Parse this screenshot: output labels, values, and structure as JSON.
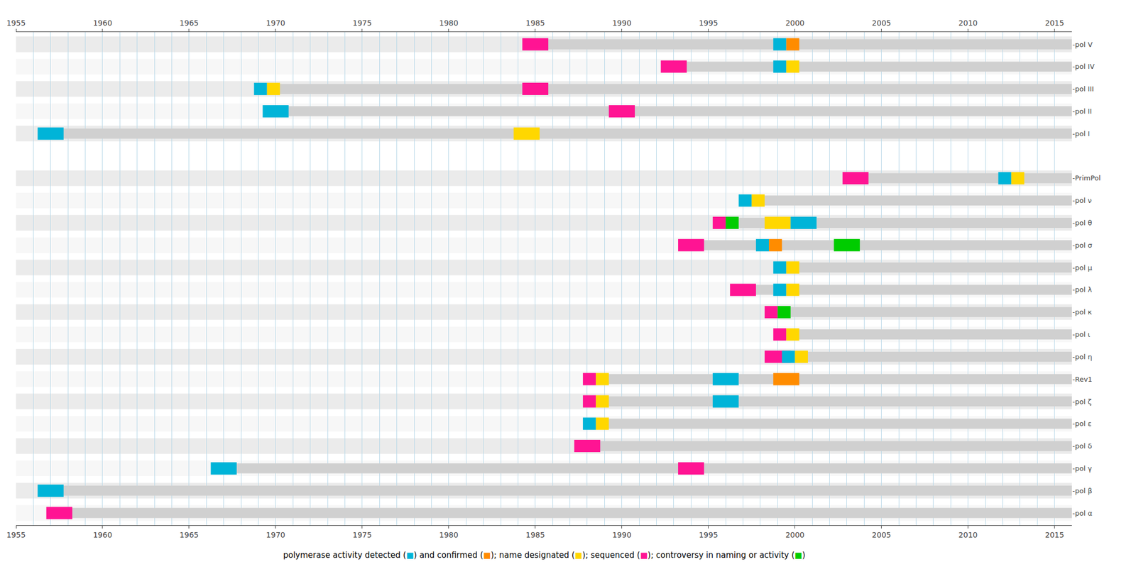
{
  "chart_data": {
    "type": "timeline",
    "categories": [
      "-pol V",
      "-pol IV",
      "-pol III",
      "-pol II",
      "-pol I",
      null,
      "-PrimPol",
      "-pol ν",
      "-pol θ",
      "-pol σ",
      "-pol μ",
      "-pol λ",
      "-pol κ",
      "-pol ι",
      "-pol η",
      "-Rev1",
      "-pol ζ",
      "-pol ε",
      "-pol δ",
      "-pol γ",
      "-pol β",
      "-pol α"
    ],
    "xlim": [
      1955,
      2016
    ],
    "xticks": [
      1955,
      1960,
      1965,
      1970,
      1975,
      1980,
      1985,
      1990,
      1995,
      2000,
      2005,
      2010,
      2015
    ],
    "grid": true,
    "spans": [
      {
        "category": "-pol V",
        "x": [
          1985,
          2016
        ]
      },
      {
        "category": "-pol IV",
        "x": [
          1993,
          2016
        ]
      },
      {
        "category": "-pol III",
        "x": [
          1969,
          2016
        ]
      },
      {
        "category": "-pol II",
        "x": [
          1970,
          2016
        ]
      },
      {
        "category": "-pol I",
        "x": [
          1957,
          2016
        ]
      },
      {
        "category": "-PrimPol",
        "x": [
          2003,
          2016
        ]
      },
      {
        "category": "-pol ν",
        "x": [
          1997,
          2016
        ]
      },
      {
        "category": "-pol θ",
        "x": [
          1996,
          2016
        ]
      },
      {
        "category": "-pol σ",
        "x": [
          1994,
          2016
        ]
      },
      {
        "category": "-pol μ",
        "x": [
          1999,
          2016
        ]
      },
      {
        "category": "-pol λ",
        "x": [
          1997,
          2016
        ]
      },
      {
        "category": "-pol κ",
        "x": [
          1999,
          2016
        ]
      },
      {
        "category": "-pol ι",
        "x": [
          1999,
          2016
        ]
      },
      {
        "category": "-pol η",
        "x": [
          1999,
          2016
        ]
      },
      {
        "category": "-Rev1",
        "x": [
          1988,
          2016
        ]
      },
      {
        "category": "-pol ζ",
        "x": [
          1988,
          2016
        ]
      },
      {
        "category": "-pol ε",
        "x": [
          1988,
          2016
        ]
      },
      {
        "category": "-pol δ",
        "x": [
          1988,
          2016
        ]
      },
      {
        "category": "-pol γ",
        "x": [
          1967,
          2016
        ]
      },
      {
        "category": "-pol β",
        "x": [
          1957,
          2016
        ]
      },
      {
        "category": "-pol α",
        "x": [
          1957,
          2016
        ]
      }
    ],
    "events": [
      {
        "category": "-pol V",
        "x": 1985.0,
        "colors": [
          "#FF1493"
        ]
      },
      {
        "category": "-pol V",
        "x": 1999.5,
        "colors": [
          "#00B4D8",
          "#FF8C00"
        ]
      },
      {
        "category": "-pol IV",
        "x": 1993.0,
        "colors": [
          "#FF1493"
        ]
      },
      {
        "category": "-pol IV",
        "x": 1999.5,
        "colors": [
          "#00B4D8",
          "#FFD700"
        ]
      },
      {
        "category": "-pol III",
        "x": 1969.5,
        "colors": [
          "#00B4D8",
          "#FFD700"
        ]
      },
      {
        "category": "-pol III",
        "x": 1985.0,
        "colors": [
          "#FF1493"
        ]
      },
      {
        "category": "-pol II",
        "x": 1970.0,
        "colors": [
          "#00B4D8"
        ]
      },
      {
        "category": "-pol II",
        "x": 1990.0,
        "colors": [
          "#FF1493"
        ]
      },
      {
        "category": "-pol I",
        "x": 1957.0,
        "colors": [
          "#00B4D8"
        ]
      },
      {
        "category": "-pol I",
        "x": 1984.5,
        "colors": [
          "#FFD700"
        ]
      },
      {
        "category": "-PrimPol",
        "x": 2003.5,
        "colors": [
          "#FF1493"
        ]
      },
      {
        "category": "-PrimPol",
        "x": 2012.5,
        "colors": [
          "#00B4D8",
          "#FFD700"
        ]
      },
      {
        "category": "-pol ν",
        "x": 1997.5,
        "colors": [
          "#00B4D8",
          "#FFD700"
        ]
      },
      {
        "category": "-pol θ",
        "x": 1996.0,
        "colors": [
          "#FF1493",
          "#00CC00"
        ]
      },
      {
        "category": "-pol θ",
        "x": 1999.0,
        "colors": [
          "#FFD700"
        ]
      },
      {
        "category": "-pol θ",
        "x": 2000.5,
        "colors": [
          "#00B4D8"
        ]
      },
      {
        "category": "-pol σ",
        "x": 1994.0,
        "colors": [
          "#FF1493"
        ]
      },
      {
        "category": "-pol σ",
        "x": 1998.5,
        "colors": [
          "#00B4D8",
          "#FF8C00"
        ]
      },
      {
        "category": "-pol σ",
        "x": 2003.0,
        "colors": [
          "#00CC00"
        ]
      },
      {
        "category": "-pol μ",
        "x": 1999.5,
        "colors": [
          "#00B4D8",
          "#FFD700"
        ]
      },
      {
        "category": "-pol λ",
        "x": 1997.0,
        "colors": [
          "#FF1493"
        ]
      },
      {
        "category": "-pol λ",
        "x": 1999.5,
        "colors": [
          "#00B4D8",
          "#FFD700"
        ]
      },
      {
        "category": "-pol κ",
        "x": 1999.0,
        "colors": [
          "#FF1493",
          "#00CC00"
        ]
      },
      {
        "category": "-pol ι",
        "x": 1999.5,
        "colors": [
          "#FF1493",
          "#FFD700"
        ]
      },
      {
        "category": "-pol η",
        "x": 1999.0,
        "colors": [
          "#FF1493"
        ]
      },
      {
        "category": "-pol η",
        "x": 2000.0,
        "colors": [
          "#00B4D8",
          "#FFD700"
        ]
      },
      {
        "category": "-Rev1",
        "x": 1988.5,
        "colors": [
          "#FF1493",
          "#FFD700"
        ]
      },
      {
        "category": "-Rev1",
        "x": 1996.0,
        "colors": [
          "#00B4D8"
        ]
      },
      {
        "category": "-Rev1",
        "x": 1999.5,
        "colors": [
          "#FF8C00"
        ]
      },
      {
        "category": "-pol ζ",
        "x": 1988.5,
        "colors": [
          "#FF1493",
          "#FFD700"
        ]
      },
      {
        "category": "-pol ζ",
        "x": 1996.0,
        "colors": [
          "#00B4D8"
        ]
      },
      {
        "category": "-pol ε",
        "x": 1988.5,
        "colors": [
          "#00B4D8",
          "#FFD700"
        ]
      },
      {
        "category": "-pol δ",
        "x": 1988.0,
        "colors": [
          "#FF1493"
        ]
      },
      {
        "category": "-pol γ",
        "x": 1967.0,
        "colors": [
          "#00B4D8"
        ]
      },
      {
        "category": "-pol γ",
        "x": 1994.0,
        "colors": [
          "#FF1493"
        ]
      },
      {
        "category": "-pol β",
        "x": 1957.0,
        "colors": [
          "#00B4D8"
        ]
      },
      {
        "category": "-pol α",
        "x": 1957.5,
        "colors": [
          "#FF1493"
        ]
      }
    ],
    "annotations": [
      {
        "parts": [
          {
            "text": "polymerase activity detected (",
            "color": "black"
          },
          {
            "text": "■",
            "color": "#00B4D8"
          },
          {
            "text": ") and confirmed (",
            "color": "black"
          },
          {
            "text": "■",
            "color": "#FF8C00"
          },
          {
            "text": "); name designated (",
            "color": "black"
          },
          {
            "text": "■",
            "color": "#FFD700"
          },
          {
            "text": "); sequenced (",
            "color": "black"
          },
          {
            "text": "■",
            "color": "#FF1493"
          },
          {
            "text": "); controversy in naming or activity (",
            "color": "black"
          },
          {
            "text": "■",
            "color": "#00CC00"
          },
          {
            "text": ")",
            "color": "black"
          }
        ]
      }
    ]
  }
}
